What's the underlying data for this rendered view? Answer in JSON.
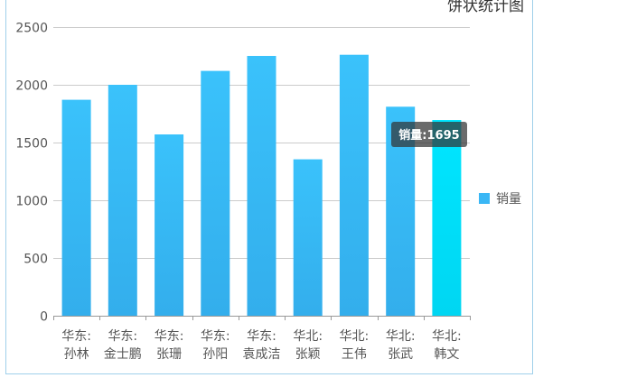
{
  "chart_data": {
    "type": "bar",
    "title": "饼状统计图",
    "categories": [
      "华东:孙林",
      "华东:金士鹏",
      "华东:张珊",
      "华东:孙阳",
      "华东:袁成洁",
      "华北:张颖",
      "华北:王伟",
      "华北:张武",
      "华北:韩文"
    ],
    "category_lines": [
      [
        "华东:",
        "孙林"
      ],
      [
        "华东:",
        "金士鹏"
      ],
      [
        "华东:",
        "张珊"
      ],
      [
        "华东:",
        "孙阳"
      ],
      [
        "华东:",
        "袁成洁"
      ],
      [
        "华北:",
        "张颖"
      ],
      [
        "华北:",
        "王伟"
      ],
      [
        "华北:",
        "张武"
      ],
      [
        "华北:",
        "韩文"
      ]
    ],
    "series": [
      {
        "name": "销量",
        "values": [
          1870,
          2000,
          1570,
          2120,
          2250,
          1355,
          2260,
          1810,
          1695
        ]
      }
    ],
    "ylim": [
      0,
      2500
    ],
    "yticks": [
      0,
      500,
      1000,
      1500,
      2000,
      2500
    ],
    "grid": true,
    "legend": {
      "position": "right",
      "label": "销量"
    },
    "highlight_index": 8,
    "tooltip": {
      "series": "销量",
      "value": 1695,
      "text": "销量:1695"
    },
    "colors": {
      "bar_top": "#3ac2fb",
      "bar_bottom": "#33aeec",
      "highlight_top": "#00e6ff",
      "highlight_bottom": "#00d6f2",
      "grid": "#cccccc",
      "legend": "#3ab7f5"
    }
  }
}
